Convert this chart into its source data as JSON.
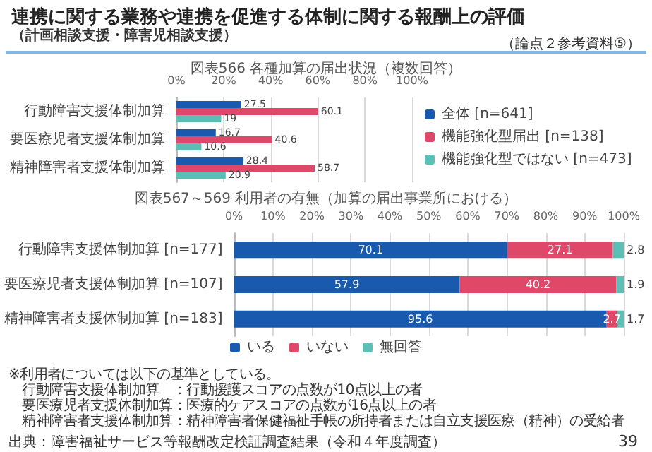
{
  "chart_data": [
    {
      "type": "bar",
      "orientation": "horizontal",
      "title": "図表566 各種加算の届出状況（複数回答）",
      "annotations": [
        "連携に関する業務や連携を促進する体制に関する報酬上の評価",
        "（計画相談支援・障害児相談支援）",
        "（論点２参考資料⑤）"
      ],
      "categories": [
        "行動障害支援体制加算",
        "要医療児者支援体制加算",
        "精神障害者支援体制加算"
      ],
      "series": [
        {
          "name": "全体 [n=641]",
          "color": "#1a5aae",
          "values": [
            27.5,
            16.7,
            28.4
          ]
        },
        {
          "name": "機能強化型届出 [n=138]",
          "color": "#e0486a",
          "values": [
            60.1,
            40.6,
            58.7
          ]
        },
        {
          "name": "機能強化型ではない [n=473]",
          "color": "#5bbfb5",
          "values": [
            19.0,
            10.6,
            20.9
          ]
        }
      ],
      "xlim": [
        0,
        100
      ],
      "xticks": [
        {
          "value": 0,
          "label": "0%"
        },
        {
          "value": 20,
          "label": "20%"
        },
        {
          "value": 40,
          "label": "40%"
        },
        {
          "value": 60,
          "label": "60%"
        },
        {
          "value": 80,
          "label": "80%"
        },
        {
          "value": 100,
          "label": "100%"
        }
      ],
      "grid": "x",
      "legend": "right",
      "data_labels": true
    },
    {
      "type": "bar",
      "orientation": "horizontal",
      "stacked": true,
      "title": "図表567～569 利用者の有無（加算の届出事業所における）",
      "annotations": [
        "※利用者については以下の基準としている。",
        "　行動障害支援体制加算　：行動援護スコアの点数が10点以上の者",
        "　要医療児者支援体制加算：医療的ケアスコアの点数が16点以上の者",
        "　精神障害者支援体制加算：精神障害者保健福祉手帳の所持者または自立支援医療（精神）の受給者",
        "出典：障害福祉サービス等報酬改定検証調査結果（令和４年度調査）",
        "39"
      ],
      "categories": [
        "行動障害支援体制加算 [n=177]",
        "要医療児者支援体制加算 [n=107]",
        "精神障害者支援体制加算 [n=183]"
      ],
      "series": [
        {
          "name": "いる",
          "color": "#1a5aae",
          "values": [
            70.1,
            57.9,
            95.6
          ]
        },
        {
          "name": "いない",
          "color": "#e0486a",
          "values": [
            27.1,
            40.2,
            2.7
          ]
        },
        {
          "name": "無回答",
          "color": "#5bbfb5",
          "values": [
            2.8,
            1.9,
            1.7
          ]
        }
      ],
      "xlim": [
        0,
        100
      ],
      "xticks": [
        {
          "value": 0,
          "label": "0%"
        },
        {
          "value": 10,
          "label": "10%"
        },
        {
          "value": 20,
          "label": "20%"
        },
        {
          "value": 30,
          "label": "30%"
        },
        {
          "value": 40,
          "label": "40%"
        },
        {
          "value": 50,
          "label": "50%"
        },
        {
          "value": 60,
          "label": "60%"
        },
        {
          "value": 70,
          "label": "70%"
        },
        {
          "value": 80,
          "label": "80%"
        },
        {
          "value": 90,
          "label": "90%"
        },
        {
          "value": 100,
          "label": "100%"
        }
      ],
      "grid": "x",
      "legend": "bottom",
      "data_labels": true
    }
  ]
}
